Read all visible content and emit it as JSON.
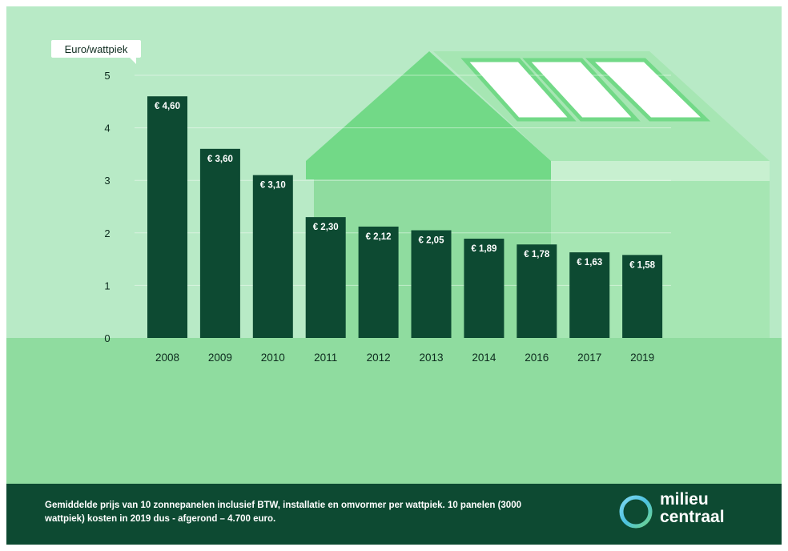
{
  "chart_data": {
    "type": "bar",
    "ylabel": "Euro/wattpiek",
    "ylim": [
      0,
      5
    ],
    "yticks": [
      0,
      1,
      2,
      3,
      4,
      5
    ],
    "categories": [
      "2008",
      "2009",
      "2010",
      "2011",
      "2012",
      "2013",
      "2014",
      "2016",
      "2017",
      "2019"
    ],
    "values": [
      4.6,
      3.6,
      3.1,
      2.3,
      2.12,
      2.05,
      1.89,
      1.78,
      1.63,
      1.58
    ],
    "labels": [
      "€ 4,60",
      "€ 3,60",
      "€ 3,10",
      "€ 2,30",
      "€ 2,12",
      "€ 2,05",
      "€ 1,89",
      "€ 1,78",
      "€ 1,63",
      "€ 1,58"
    ],
    "grid": true
  },
  "footer": {
    "caption": "Gemiddelde prijs van 10 zonnepanelen inclusief BTW, installatie en omvormer per wattpiek. 10 panelen (3000 wattpiek) kosten in 2019 dus - afgerond – 4.700 euro.",
    "logo_line1": "milieu",
    "logo_line2": "centraal"
  },
  "colors": {
    "sky": "#b8eac6",
    "ground": "#8fdc9f",
    "house_dark": "#72d987",
    "house_light": "#a6e6b3",
    "bar": "#0d4a32",
    "footer": "#0d4a32"
  }
}
